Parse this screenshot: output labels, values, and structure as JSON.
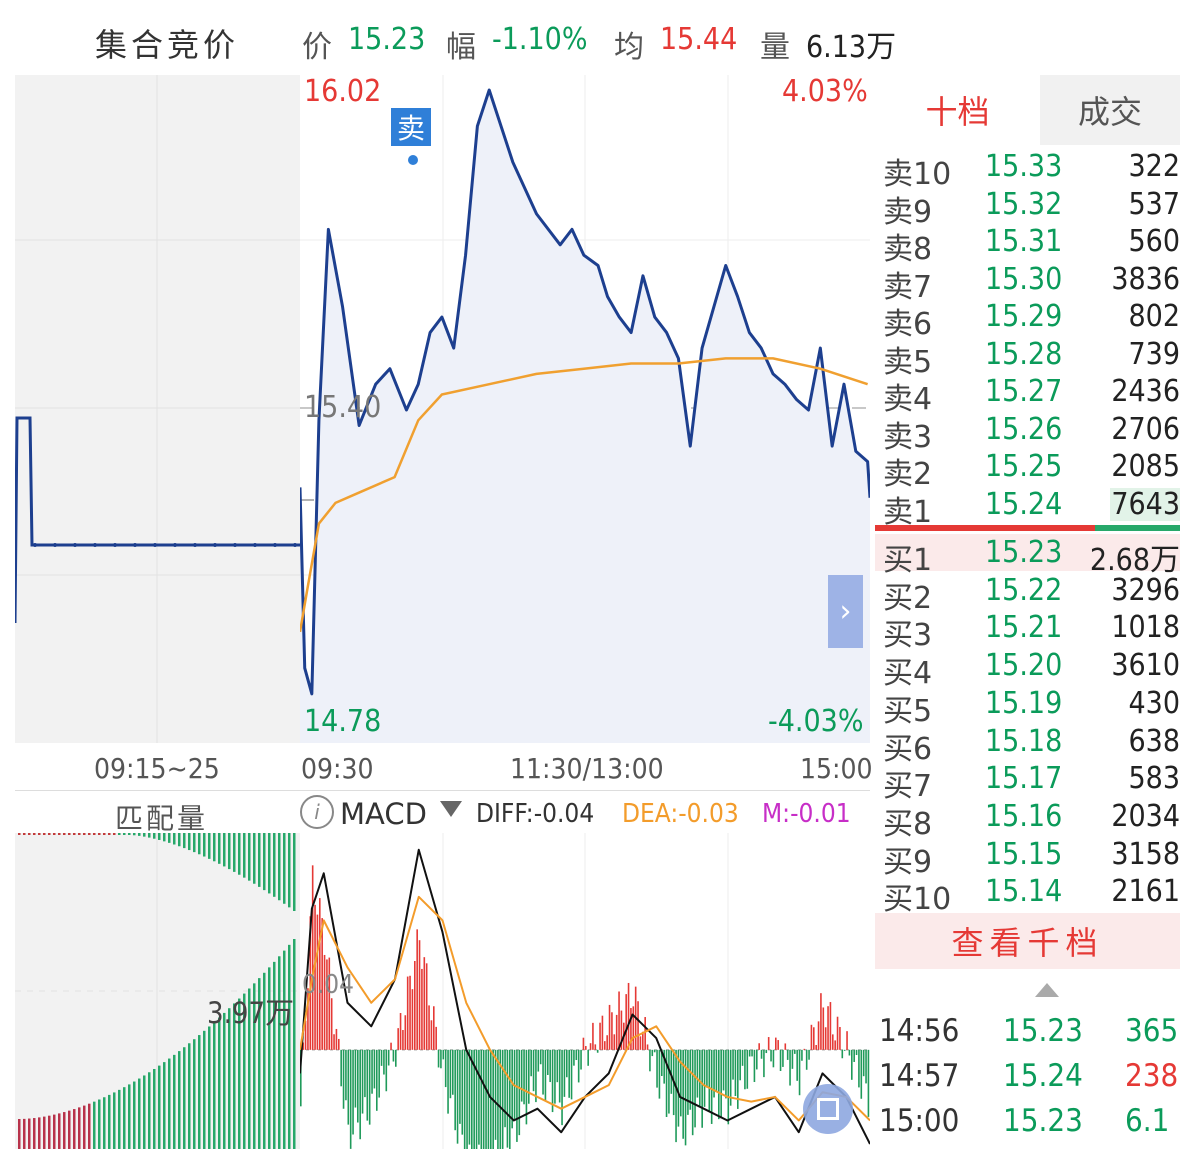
{
  "header": {
    "title": "集合竞价",
    "price_label": "价",
    "price": "15.23",
    "change_label": "幅",
    "change": "-1.10%",
    "avg_label": "均",
    "avg": "15.44",
    "volume_label": "量",
    "volume": "6.13万"
  },
  "main_chart": {
    "high_price": "16.02",
    "low_price": "14.78",
    "high_pct": "4.03%",
    "low_pct": "-4.03%",
    "mid_price": "15.40",
    "sell_marker": "卖",
    "auction_time": "09:15~25",
    "time_open": "09:30",
    "time_mid": "11:30/13:00",
    "time_close": "15:00"
  },
  "sub_chart": {
    "match_label": "匹配量",
    "match_value": "3.97万",
    "indicator": "MACD",
    "diff": "DIFF:-0.04",
    "dea": "DEA:-0.03",
    "m": "M:-0.01",
    "axis_value": "0.04"
  },
  "order_book": {
    "tabs": [
      "十档",
      "成交"
    ],
    "asks": [
      {
        "label": "卖10",
        "price": "15.33",
        "volume": "322"
      },
      {
        "label": "卖9",
        "price": "15.32",
        "volume": "537"
      },
      {
        "label": "卖8",
        "price": "15.31",
        "volume": "560"
      },
      {
        "label": "卖7",
        "price": "15.30",
        "volume": "3836"
      },
      {
        "label": "卖6",
        "price": "15.29",
        "volume": "802"
      },
      {
        "label": "卖5",
        "price": "15.28",
        "volume": "739"
      },
      {
        "label": "卖4",
        "price": "15.27",
        "volume": "2436"
      },
      {
        "label": "卖3",
        "price": "15.26",
        "volume": "2706"
      },
      {
        "label": "卖2",
        "price": "15.25",
        "volume": "2085"
      },
      {
        "label": "卖1",
        "price": "15.24",
        "volume": "7643"
      }
    ],
    "bids": [
      {
        "label": "买1",
        "price": "15.23",
        "volume": "2.68万"
      },
      {
        "label": "买2",
        "price": "15.22",
        "volume": "3296"
      },
      {
        "label": "买3",
        "price": "15.21",
        "volume": "1018"
      },
      {
        "label": "买4",
        "price": "15.20",
        "volume": "3610"
      },
      {
        "label": "买5",
        "price": "15.19",
        "volume": "430"
      },
      {
        "label": "买6",
        "price": "15.18",
        "volume": "638"
      },
      {
        "label": "买7",
        "price": "15.17",
        "volume": "583"
      },
      {
        "label": "买8",
        "price": "15.16",
        "volume": "2034"
      },
      {
        "label": "买9",
        "price": "15.15",
        "volume": "3158"
      },
      {
        "label": "买10",
        "price": "15.14",
        "volume": "2161"
      }
    ],
    "view_thousand": "查看千档",
    "ticks": [
      {
        "time": "14:56",
        "price": "15.23",
        "volume": "365"
      },
      {
        "time": "14:57",
        "price": "15.24",
        "volume": "238"
      },
      {
        "time": "15:00",
        "price": "15.23",
        "volume": "6.1"
      }
    ]
  },
  "chart_data": [
    {
      "type": "line",
      "title": "",
      "xlabel": "",
      "ylabel": "",
      "ylim": [
        14.78,
        16.02
      ],
      "reference_line": 15.4,
      "x_ticks": [
        "09:30",
        "11:30/13:00",
        "15:00"
      ],
      "series": [
        {
          "name": "",
          "color": "#1d3f8f",
          "x": [
            0,
            2,
            5,
            8,
            12,
            18,
            25,
            32,
            38,
            45,
            50,
            55,
            60,
            65,
            70,
            75,
            80,
            90,
            100,
            110,
            115,
            120,
            126,
            130,
            135,
            140,
            145,
            150,
            155,
            160,
            165,
            170,
            175,
            180,
            185,
            190,
            195,
            200,
            205,
            210,
            215,
            220,
            225,
            230,
            235,
            240,
            241
          ],
          "values": [
            15.25,
            14.9,
            14.85,
            15.38,
            15.75,
            15.6,
            15.37,
            15.45,
            15.48,
            15.4,
            15.45,
            15.55,
            15.58,
            15.52,
            15.7,
            15.95,
            16.02,
            15.88,
            15.78,
            15.72,
            15.75,
            15.7,
            15.68,
            15.62,
            15.58,
            15.55,
            15.66,
            15.58,
            15.55,
            15.5,
            15.33,
            15.52,
            15.6,
            15.68,
            15.62,
            15.55,
            15.52,
            15.47,
            15.45,
            15.42,
            15.4,
            15.52,
            15.33,
            15.45,
            15.32,
            15.3,
            15.23
          ]
        },
        {
          "name": "",
          "color": "#f0a030",
          "x": [
            0,
            3,
            8,
            15,
            25,
            40,
            50,
            60,
            80,
            100,
            120,
            140,
            160,
            180,
            200,
            220,
            240
          ],
          "values": [
            14.97,
            15.05,
            15.18,
            15.22,
            15.24,
            15.27,
            15.38,
            15.43,
            15.45,
            15.47,
            15.48,
            15.49,
            15.49,
            15.5,
            15.5,
            15.48,
            15.45
          ]
        }
      ]
    },
    {
      "type": "bar",
      "title": "MACD",
      "xlabel": "",
      "ylabel": "",
      "ylim": [
        -0.04,
        0.09
      ],
      "series": [
        {
          "name": "DIFF",
          "color": "#111111",
          "x": [
            0,
            5,
            10,
            20,
            30,
            40,
            50,
            60,
            70,
            80,
            90,
            100,
            110,
            120,
            130,
            140,
            150,
            160,
            170,
            180,
            190,
            200,
            210,
            220,
            230,
            240
          ],
          "values": [
            -0.01,
            0.06,
            0.075,
            0.02,
            0.01,
            0.03,
            0.085,
            0.05,
            0.0,
            -0.02,
            -0.03,
            -0.025,
            -0.035,
            -0.02,
            -0.01,
            0.015,
            0.005,
            -0.02,
            -0.025,
            -0.03,
            -0.025,
            -0.02,
            -0.035,
            -0.01,
            -0.02,
            -0.04
          ]
        },
        {
          "name": "DEA",
          "color": "#f39c2b",
          "x": [
            0,
            5,
            10,
            20,
            30,
            40,
            50,
            60,
            70,
            80,
            90,
            100,
            110,
            120,
            130,
            140,
            150,
            160,
            170,
            180,
            190,
            200,
            210,
            220,
            230,
            240
          ],
          "values": [
            0.0,
            0.03,
            0.055,
            0.035,
            0.02,
            0.03,
            0.065,
            0.055,
            0.02,
            0.0,
            -0.015,
            -0.02,
            -0.025,
            -0.02,
            -0.015,
            0.005,
            0.01,
            -0.005,
            -0.015,
            -0.02,
            -0.022,
            -0.02,
            -0.03,
            -0.018,
            -0.02,
            -0.03
          ]
        },
        {
          "name": "M",
          "color": "#c72ec7",
          "x": [
            0,
            5,
            10,
            20,
            30,
            40,
            50,
            60,
            70,
            80,
            90,
            100,
            110,
            120,
            130,
            140,
            150,
            160,
            170,
            180,
            190,
            200,
            210,
            220,
            230,
            240
          ],
          "values": [
            -0.01,
            0.03,
            0.02,
            -0.015,
            -0.01,
            0.0,
            0.02,
            -0.005,
            -0.02,
            -0.02,
            -0.015,
            -0.005,
            -0.01,
            0.0,
            0.005,
            0.01,
            -0.005,
            -0.015,
            -0.01,
            -0.01,
            -0.003,
            0.0,
            -0.005,
            0.008,
            0.0,
            -0.01
          ]
        }
      ]
    }
  ]
}
